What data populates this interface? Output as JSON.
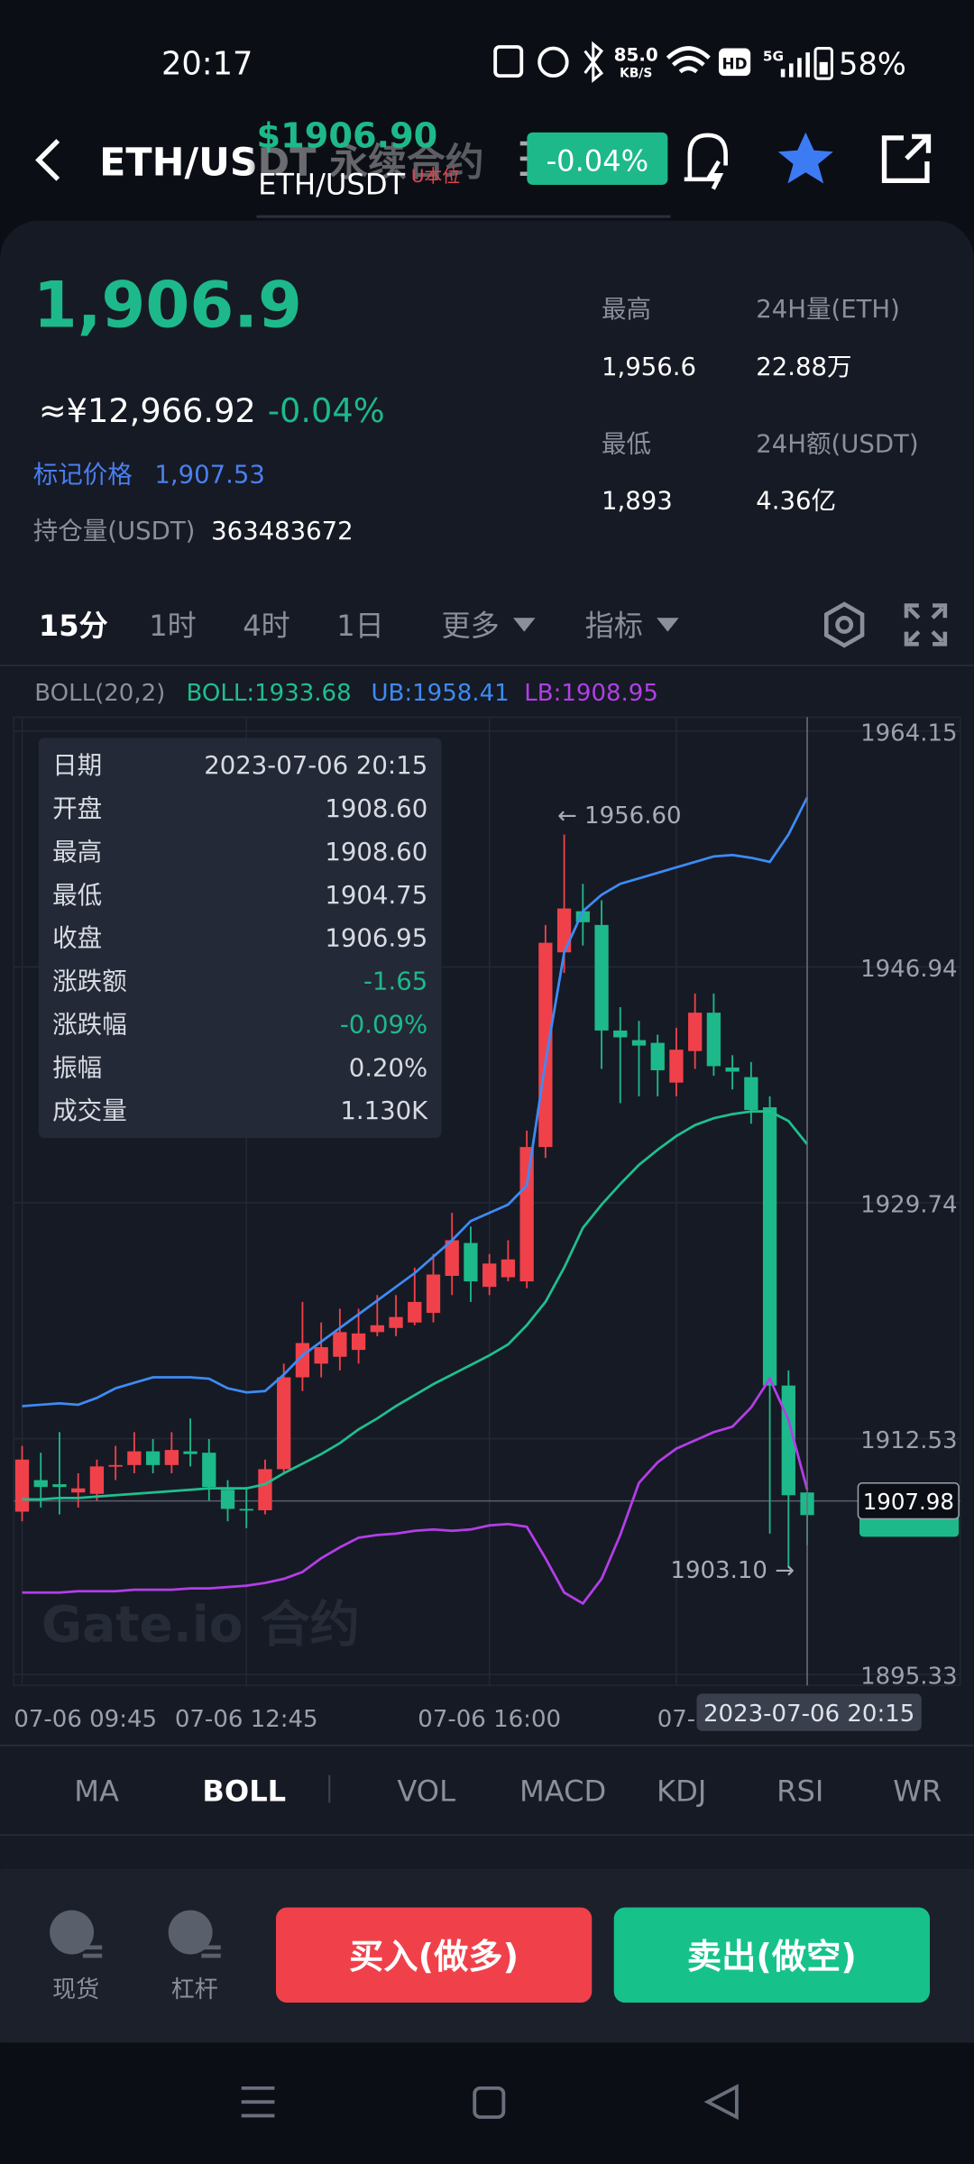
{
  "status_bar": {
    "time": "20:17",
    "net_speed": "85.0",
    "net_unit": "KB/S",
    "hd": "HD",
    "signal": "5G",
    "battery": "58%"
  },
  "header": {
    "title": "ETH/USDT 永续合约",
    "overlay_price": "$1906.90",
    "overlay_pair": "ETH/USDT",
    "overlay_tag": "U本位",
    "change": "-0.04%"
  },
  "ticker": {
    "last": "1,906.9",
    "cny": "≈¥12,966.92",
    "change": "-0.04%",
    "mark_label": "标记价格",
    "mark_value": "1,907.53",
    "oi_label": "持仓量(USDT)",
    "oi_value": "363483672",
    "stats": [
      {
        "label": "最高",
        "value": "1,956.6"
      },
      {
        "label": "24H量(ETH)",
        "value": "22.88万"
      },
      {
        "label": "最低",
        "value": "1,893"
      },
      {
        "label": "24H额(USDT)",
        "value": "4.36亿"
      }
    ]
  },
  "intervals": [
    "15分",
    "1时",
    "4时",
    "1日",
    "更多",
    "指标"
  ],
  "indicator": {
    "name": "BOLL(20,2)",
    "mb": "BOLL:1933.68",
    "ub": "UB:1958.41",
    "lb": "LB:1908.95"
  },
  "tooltip": [
    {
      "label": "日期",
      "value": "2023-07-06 20:15"
    },
    {
      "label": "开盘",
      "value": "1908.60"
    },
    {
      "label": "最高",
      "value": "1908.60"
    },
    {
      "label": "最低",
      "value": "1904.75"
    },
    {
      "label": "收盘",
      "value": "1906.95"
    },
    {
      "label": "涨跌额",
      "value": "-1.65"
    },
    {
      "label": "涨跌幅",
      "value": "-0.09%"
    },
    {
      "label": "振幅",
      "value": "0.20%"
    },
    {
      "label": "成交量",
      "value": "1.130K"
    }
  ],
  "chart": {
    "type": "candlestick",
    "up_color": "#f0414a",
    "down_color": "#1db98a",
    "ub_color": "#3d8bf5",
    "mb_color": "#1fbf8e",
    "lb_color": "#b33ee8",
    "ylim": [
      1895.33,
      1964.15
    ],
    "yticks": [
      1964.15,
      1946.94,
      1929.74,
      1912.53,
      1895.33
    ],
    "categories": [
      "07-06 09:45",
      null,
      null,
      null,
      null,
      null,
      null,
      null,
      null,
      null,
      null,
      null,
      "07-06 12:45",
      null,
      null,
      null,
      null,
      null,
      null,
      null,
      null,
      null,
      null,
      null,
      null,
      "07-06 16:00",
      null,
      null,
      null,
      null,
      null,
      null,
      null,
      null,
      null,
      "07-",
      null,
      null,
      null,
      null,
      null,
      null,
      null
    ],
    "open": [
      1907.2,
      1909.5,
      1909.2,
      1908.6,
      1908.5,
      1910.5,
      1910.6,
      1911.6,
      1910.6,
      1911.6,
      1911.5,
      1908.8,
      1907.4,
      1907.3,
      1910.3,
      1917,
      1918,
      1918.5,
      1919,
      1920.3,
      1920.6,
      1921,
      1921.7,
      1924.4,
      1926.8,
      1923.6,
      1924.3,
      1924,
      1933.8,
      1948,
      1951,
      1950,
      1942.3,
      1941.6,
      1941.4,
      1938.5,
      1940.8,
      1943.6,
      1939.6,
      1938.9,
      1936.7,
      1916.4,
      1908.6
    ],
    "high": [
      1912,
      1911.5,
      1913,
      1910,
      1911,
      1912,
      1913,
      1912.5,
      1913,
      1914,
      1912.5,
      1909.5,
      1909,
      1911,
      1918,
      1922.5,
      1921,
      1922,
      1922,
      1923,
      1923,
      1925,
      1926,
      1929,
      1928,
      1926,
      1927,
      1935,
      1950,
      1956.6,
      1953,
      1951.8,
      1944,
      1943,
      1942,
      1942.5,
      1945,
      1945,
      1940.5,
      1940,
      1937.5,
      1917.5,
      1908.6
    ],
    "low": [
      1906.5,
      1907.5,
      1907,
      1907.5,
      1908,
      1909.5,
      1910,
      1910,
      1910,
      1910.5,
      1908,
      1906.5,
      1906,
      1907,
      1910,
      1916,
      1917,
      1917.5,
      1918,
      1920,
      1920,
      1920.8,
      1921,
      1923,
      1922.5,
      1923,
      1924,
      1923.5,
      1933,
      1946.5,
      1948.5,
      1939.5,
      1937,
      1937.5,
      1937.5,
      1937.5,
      1939.5,
      1939,
      1938,
      1935.5,
      1905.6,
      1903.1,
      1904.75
    ],
    "close": [
      1911,
      1909,
      1909,
      1908.9,
      1910.5,
      1910.6,
      1911.6,
      1910.6,
      1911.7,
      1911.4,
      1909,
      1907.4,
      1907.3,
      1910.3,
      1917,
      1919.5,
      1919.2,
      1920.3,
      1920.2,
      1920.8,
      1921.4,
      1922.5,
      1924.5,
      1927,
      1924,
      1925.3,
      1925.6,
      1933.8,
      1948.7,
      1951.2,
      1950.2,
      1942.3,
      1941.8,
      1941.2,
      1939.4,
      1940.9,
      1943.6,
      1939.7,
      1939.3,
      1936.5,
      1916.4,
      1908.4,
      1906.95
    ],
    "ub": [
      1914.9,
      1915,
      1915.1,
      1915,
      1915.5,
      1916.2,
      1916.6,
      1917,
      1917,
      1917,
      1916.9,
      1916.2,
      1915.9,
      1916,
      1917.2,
      1918.6,
      1919.6,
      1920.6,
      1921.6,
      1922.6,
      1923.6,
      1924.6,
      1925.8,
      1927,
      1928.4,
      1929,
      1929.6,
      1931,
      1940,
      1948,
      1951,
      1952.2,
      1953,
      1953.4,
      1953.8,
      1954.2,
      1954.6,
      1955,
      1955.1,
      1954.9,
      1954.6,
      1956.6,
      1959.3
    ],
    "mb": [
      1908.1,
      1908.1,
      1908.2,
      1908.2,
      1908.3,
      1908.4,
      1908.5,
      1908.6,
      1908.7,
      1908.8,
      1908.9,
      1908.9,
      1908.9,
      1909.2,
      1910,
      1910.7,
      1911.4,
      1912.2,
      1913.2,
      1914,
      1914.9,
      1915.7,
      1916.5,
      1917.2,
      1917.9,
      1918.6,
      1919.4,
      1920.8,
      1922.5,
      1925,
      1927.9,
      1929.6,
      1931.1,
      1932.5,
      1933.6,
      1934.6,
      1935.4,
      1935.9,
      1936.2,
      1936.4,
      1936.4,
      1935.7,
      1934
    ],
    "lb": [
      1901.3,
      1901.3,
      1901.3,
      1901.4,
      1901.4,
      1901.4,
      1901.5,
      1901.5,
      1901.5,
      1901.6,
      1901.6,
      1901.7,
      1901.8,
      1902,
      1902.3,
      1902.8,
      1903.8,
      1904.6,
      1905.3,
      1905.5,
      1905.6,
      1905.8,
      1905.9,
      1905.8,
      1905.9,
      1906.2,
      1906.3,
      1906.1,
      1903.8,
      1901.3,
      1900.5,
      1902.3,
      1905.5,
      1909.3,
      1910.8,
      1911.8,
      1912.4,
      1913,
      1913.4,
      1914.8,
      1916.9,
      1913.9,
      1908.8
    ],
    "price_line": 1907.98,
    "high_note": "← 1956.60",
    "low_note": "1903.10 →",
    "crosshair_label": "2023-07-06 20:15",
    "watermark": "Gate.io 合约"
  },
  "indicator_tabs": [
    "MA",
    "BOLL",
    "VOL",
    "MACD",
    "KDJ",
    "RSI",
    "WR"
  ],
  "bottom": {
    "spot": "现货",
    "margin": "杠杆",
    "buy": "买入(做多)",
    "sell": "卖出(做空)"
  }
}
